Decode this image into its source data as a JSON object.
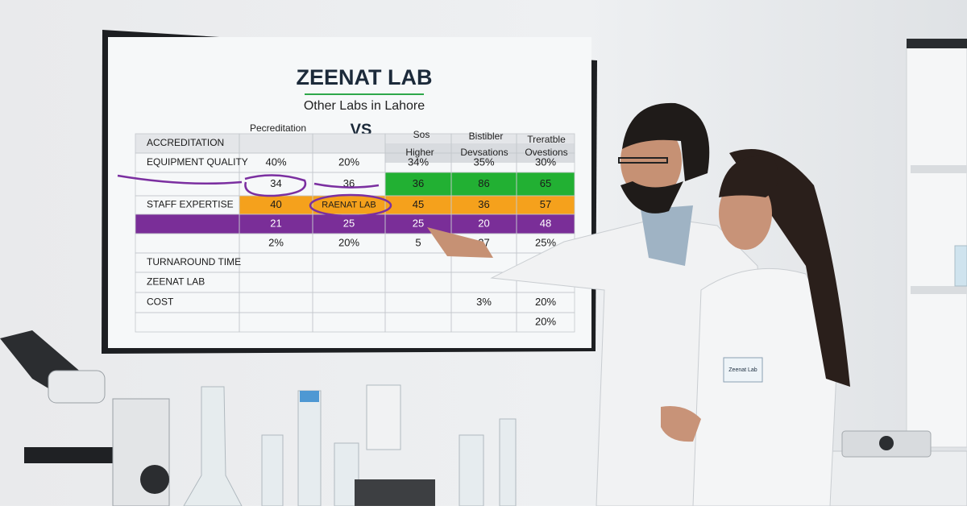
{
  "screen": {
    "title": "ZEENAT LAB",
    "subtitle": "Other Labs in Lahore",
    "vs": "VS",
    "headers": [
      "Pecreditation",
      "Sos",
      "Bistibler",
      "Treratble"
    ],
    "subheaders": [
      "Higher",
      "Devsations",
      "Ovestions"
    ],
    "rows": [
      {
        "label": "ACCREDITATION",
        "cells": [
          null,
          null,
          null,
          null,
          null
        ]
      },
      {
        "label": "EQUIPMENT QUALITY",
        "cells": [
          "40%",
          "20%",
          "34%",
          "35%",
          "30%"
        ]
      },
      {
        "label": null,
        "cells": [
          34,
          36,
          36,
          86,
          65
        ]
      },
      {
        "label": "STAFF EXPERTISE",
        "cells": [
          40,
          "RAENAT LAB",
          45,
          36,
          57
        ]
      },
      {
        "label": null,
        "cells": [
          21,
          25,
          25,
          20,
          48
        ]
      },
      {
        "label": null,
        "cells": [
          "2%",
          "20%",
          5,
          27,
          "25%"
        ]
      },
      {
        "label": "TURNAROUND TIME",
        "cells": [
          null,
          null,
          null,
          null,
          null
        ]
      },
      {
        "label": "ZEENAT LAB",
        "cells": [
          null,
          null,
          null,
          null,
          null
        ]
      },
      {
        "label": "COST",
        "cells": [
          null,
          null,
          null,
          "3%",
          "20%"
        ]
      },
      {
        "label": null,
        "cells": [
          null,
          null,
          null,
          null,
          "20%"
        ]
      }
    ]
  },
  "badge": "Zeenat Lab"
}
